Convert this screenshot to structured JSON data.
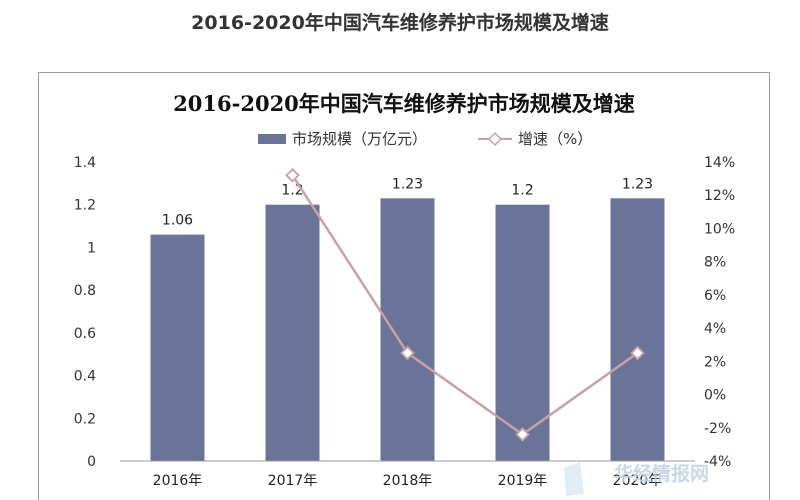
{
  "page_title": "2016-2020年中国汽车维修养护市场规模及增速",
  "chart_data": {
    "type": "bar",
    "title": "2016-2020年中国汽车维修养护市场规模及增速",
    "categories": [
      "2016年",
      "2017年",
      "2018年",
      "2019年",
      "2020年"
    ],
    "series": [
      {
        "name": "市场规模（万亿元）",
        "type": "bar",
        "axis": "left",
        "color": "#6a7499",
        "values": [
          1.06,
          1.2,
          1.23,
          1.2,
          1.23
        ],
        "labels": [
          "1.06",
          "1.2",
          "1.23",
          "1.2",
          "1.23"
        ]
      },
      {
        "name": "增速（%）",
        "type": "line",
        "axis": "right",
        "color": "#c9a0a4",
        "values": [
          null,
          13.2,
          2.5,
          -2.4,
          2.5
        ]
      }
    ],
    "y_left": {
      "min": 0,
      "max": 1.4,
      "ticks": [
        "0",
        "0.2",
        "0.4",
        "0.6",
        "0.8",
        "1",
        "1.2",
        "1.4"
      ]
    },
    "y_right": {
      "min": -4,
      "max": 14,
      "ticks": [
        "-4%",
        "-2%",
        "0%",
        "2%",
        "4%",
        "6%",
        "8%",
        "10%",
        "12%",
        "14%"
      ]
    },
    "legend_position": "top-center",
    "grid": false
  },
  "watermark": {
    "text": "华经情报网"
  }
}
